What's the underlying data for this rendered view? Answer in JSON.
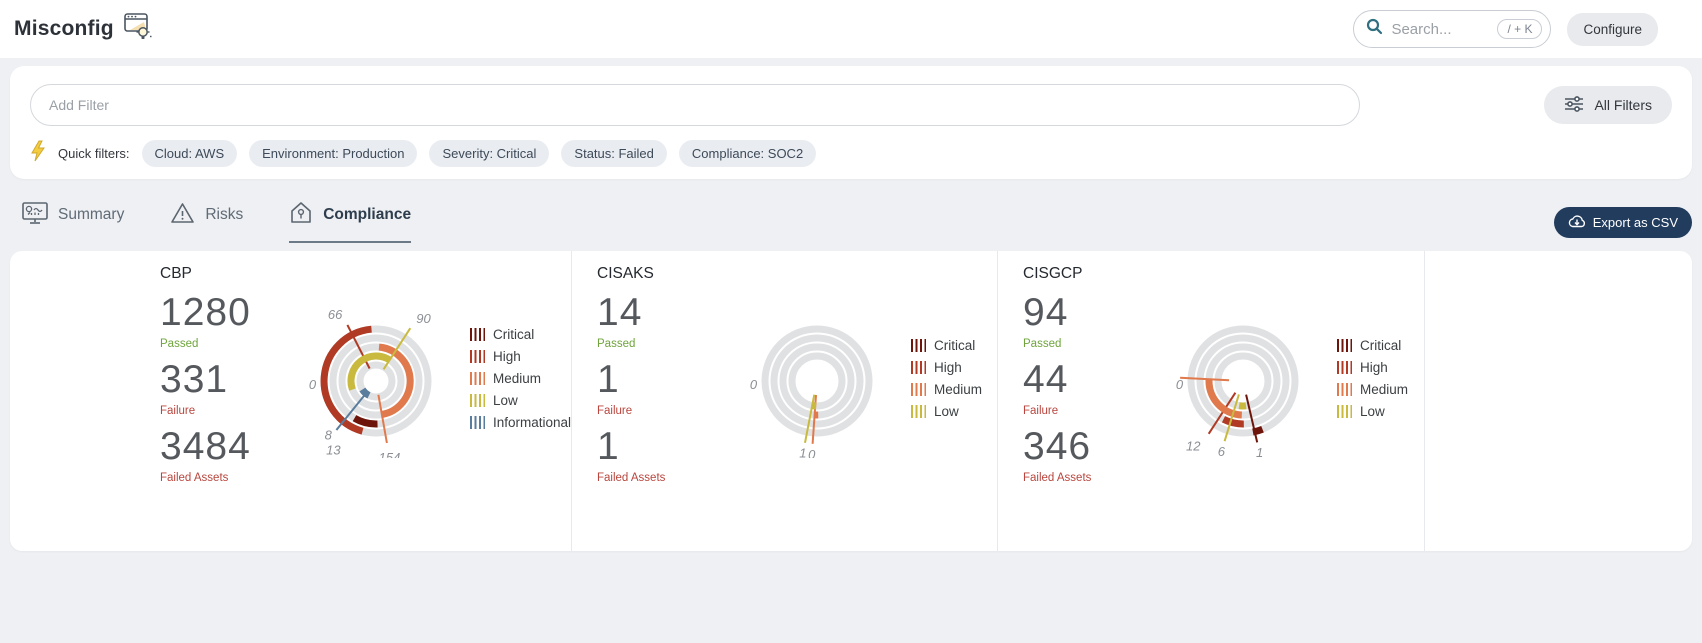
{
  "header": {
    "title": "Misconfig",
    "search_placeholder": "Search...",
    "search_shortcut": "/ + K",
    "configure_label": "Configure"
  },
  "filters": {
    "add_filter_placeholder": "Add Filter",
    "all_filters_label": "All Filters",
    "quick_filters_label": "Quick filters:",
    "chips": [
      "Cloud: AWS",
      "Environment: Production",
      "Severity: Critical",
      "Status: Failed",
      "Compliance: SOC2"
    ]
  },
  "tabs": [
    {
      "label": "Summary",
      "icon": "summary-icon",
      "active": false
    },
    {
      "label": "Risks",
      "icon": "risks-icon",
      "active": false
    },
    {
      "label": "Compliance",
      "icon": "compliance-icon",
      "active": true
    }
  ],
  "export_button": {
    "label": "Export as CSV"
  },
  "severity_colors": {
    "Critical": "#6e150b",
    "High": "#b03a24",
    "Medium": "#e0794b",
    "Low": "#c9ba3f",
    "Informational": "#5a7d9d"
  },
  "stats_labels": {
    "passed": "Passed",
    "failure": "Failure",
    "failed_assets": "Failed Assets"
  },
  "chart_data": [
    {
      "type": "radial-gauge",
      "title": "CBP",
      "passed": 1280,
      "failure": 331,
      "failed_assets": 3484,
      "axis_label": "0",
      "legend": [
        "Critical",
        "High",
        "Medium",
        "Low",
        "Informational"
      ],
      "rings": [
        {
          "name": "High",
          "value": 66,
          "arc": [
            95,
            255
          ],
          "callout": {
            "label": "66",
            "angle": 117,
            "line": true,
            "label_r": 74
          }
        },
        {
          "name": "Critical",
          "value": 13,
          "arc": [
            240,
            272
          ],
          "callout": {
            "label": "13",
            "angle": 243,
            "line": false,
            "label_r": 78
          }
        },
        {
          "name": "Medium",
          "value": 154,
          "arc": [
            -80,
            85
          ],
          "callout": {
            "label": "154",
            "angle": 280,
            "line": true,
            "label_r": 78
          }
        },
        {
          "name": "Low",
          "value": 90,
          "arc": [
            55,
            200
          ],
          "callout": {
            "label": "90",
            "angle": 57,
            "line": true,
            "label_r": 74
          }
        },
        {
          "name": "Informational",
          "value": 8,
          "arc": [
            212,
            244
          ],
          "callout": {
            "label": "8",
            "angle": 231,
            "line": true,
            "label_r": 70
          }
        }
      ]
    },
    {
      "type": "radial-gauge",
      "title": "CISAKS",
      "passed": 14,
      "failure": 1,
      "failed_assets": 1,
      "axis_label": "0",
      "legend": [
        "Critical",
        "High",
        "Medium",
        "Low"
      ],
      "rings": [
        {
          "name": "Critical",
          "value": 0,
          "arc": null,
          "callout": null
        },
        {
          "name": "High",
          "value": 0,
          "arc": null,
          "callout": null
        },
        {
          "name": "Medium",
          "value": 0,
          "arc": [
            266,
            272
          ],
          "callout": {
            "label": "0",
            "angle": 266,
            "line": true,
            "label_r": 74
          }
        },
        {
          "name": "Low",
          "value": 1,
          "arc": [
            260,
            268
          ],
          "callout": {
            "label": "1",
            "angle": 259,
            "line": true,
            "label_r": 74
          }
        }
      ]
    },
    {
      "type": "radial-gauge",
      "title": "CISGCP",
      "passed": 94,
      "failure": 44,
      "failed_assets": 346,
      "axis_label": "0",
      "legend": [
        "Critical",
        "High",
        "Medium",
        "Low"
      ],
      "rings": [
        {
          "name": "Critical",
          "value": 1,
          "arc": [
            281,
            292
          ],
          "callout": {
            "label": "1",
            "angle": 283,
            "line": true,
            "label_r": 74
          }
        },
        {
          "name": "High",
          "value": 12,
          "arc": [
            243,
            271
          ],
          "callout": {
            "label": "12",
            "angle": 237,
            "line": true,
            "label_r": 78
          }
        },
        {
          "name": "Medium",
          "value": 25,
          "arc": [
            176,
            268
          ],
          "callout": {
            "label": "",
            "angle": 177,
            "line": true,
            "label_r": 0
          }
        },
        {
          "name": "Low",
          "value": 6,
          "arc": [
            261,
            277
          ],
          "callout": {
            "label": "6",
            "angle": 253,
            "line": true,
            "label_r": 74
          }
        }
      ]
    }
  ]
}
